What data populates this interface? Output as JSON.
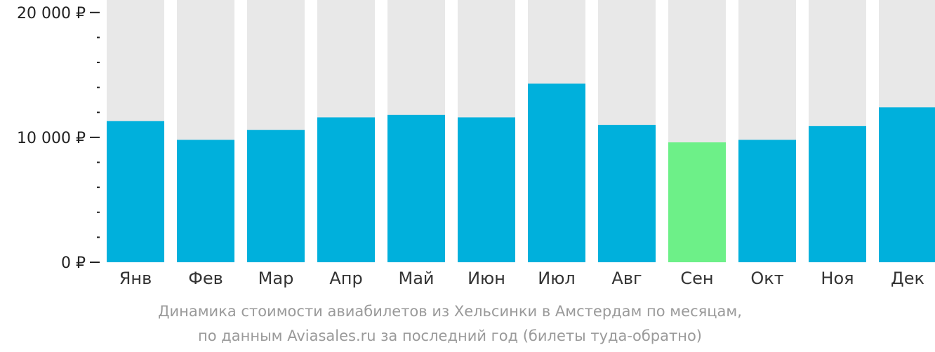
{
  "chart_data": {
    "type": "bar",
    "categories": [
      "Янв",
      "Фев",
      "Мар",
      "Апр",
      "Май",
      "Июн",
      "Июл",
      "Авг",
      "Сен",
      "Окт",
      "Ноя",
      "Дек"
    ],
    "values": [
      11300,
      9800,
      10600,
      11600,
      11800,
      11600,
      14300,
      11000,
      9600,
      9800,
      10900,
      12400
    ],
    "ylim": [
      0,
      21000
    ],
    "yticks": [
      {
        "value": 0,
        "label": "0 ₽"
      },
      {
        "value": 10000,
        "label": "10 000 ₽"
      },
      {
        "value": 20000,
        "label": "20 000 ₽"
      }
    ],
    "highlight_index": 8,
    "colors": {
      "bar": "#00b0dc",
      "highlight": "#6df088",
      "background_bar": "#e8e8e8",
      "axis": "#222222"
    },
    "grid": false,
    "legend": "none"
  },
  "caption": {
    "line1": "Динамика стоимости авиабилетов из Хельсинки в Амстердам по месяцам,",
    "line2": "по данным Aviasales.ru за последний год (билеты туда-обратно)"
  }
}
